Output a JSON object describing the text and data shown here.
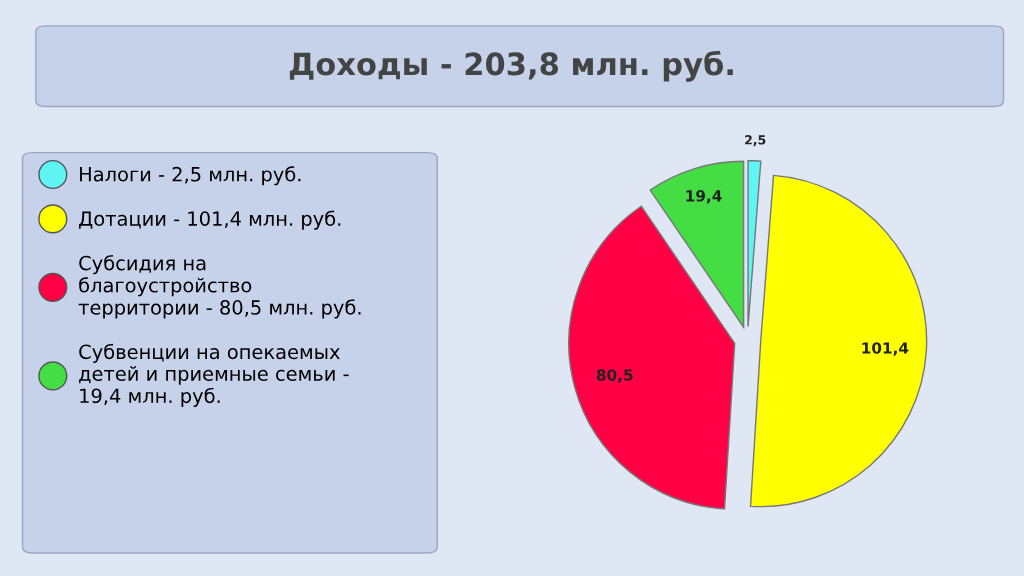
{
  "chart_data": {
    "type": "pie",
    "title": "Доходы - 203,8 млн. руб.",
    "categories": [
      "Налоги - 2,5 млн. руб.",
      "Дотации - 101,4 млн. руб.",
      "Субсидия на\nблагоустройство\nтерритории - 80,5 млн. руб.",
      "Субвенции на опекаемых\nдетей и приемные семьи -\n19,4 млн. руб."
    ],
    "values": [
      2.5,
      101.4,
      80.5,
      19.4
    ],
    "value_labels": [
      "2,5",
      "101,4",
      "80,5",
      "19,4"
    ],
    "colors": [
      "#5ff5f5",
      "#ffff00",
      "#ff0044",
      "#44dd44"
    ],
    "legend": "left"
  }
}
